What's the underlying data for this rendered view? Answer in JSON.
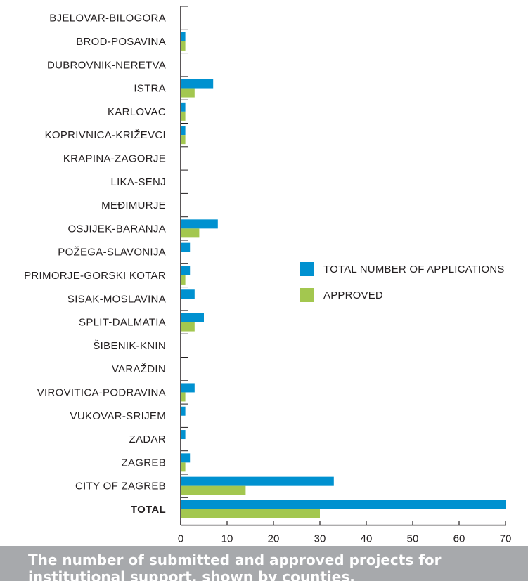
{
  "colors": {
    "applications": "#0091d0",
    "approved": "#a3c74f",
    "axis": "#231f20",
    "text": "#231f20",
    "caption_bg": "#a7a9ac"
  },
  "chart_data": {
    "type": "bar",
    "orientation": "horizontal",
    "categories": [
      "BJELOVAR-BILOGORA",
      "BROD-POSAVINA",
      "DUBROVNIK-NERETVA",
      "ISTRA",
      "KARLOVAC",
      "KOPRIVNICA-KRIŽEVCI",
      "KRAPINA-ZAGORJE",
      "LIKA-SENJ",
      "MEĐIMURJE",
      "OSJIJEK-BARANJA",
      "POŽEGA-SLAVONIJA",
      "PRIMORJE-GORSKI KOTAR",
      "SISAK-MOSLAVINA",
      "SPLIT-DALMATIA",
      "ŠIBENIK-KNIN",
      "VARAŽDIN",
      "VIROVITICA-PODRAVINA",
      "VUKOVAR-SRIJEM",
      "ZADAR",
      "ZAGREB",
      "CITY OF ZAGREB",
      "TOTAL"
    ],
    "series": [
      {
        "name": "TOTAL NUMBER OF APPLICATIONS",
        "values": [
          0,
          1,
          0,
          7,
          1,
          1,
          0,
          0,
          0,
          8,
          2,
          2,
          3,
          5,
          0,
          0,
          3,
          1,
          1,
          2,
          33,
          70
        ]
      },
      {
        "name": "APPROVED",
        "values": [
          0,
          1,
          0,
          3,
          1,
          1,
          0,
          0,
          0,
          4,
          0,
          1,
          0,
          3,
          0,
          0,
          1,
          0,
          0,
          1,
          14,
          30
        ]
      }
    ],
    "xlim": [
      0,
      70
    ],
    "xticks": [
      "0",
      "10",
      "20",
      "30",
      "40",
      "50",
      "60",
      "70"
    ],
    "legend_position": "right"
  },
  "caption": "The number of submitted and approved projects for institutional support, shown by counties."
}
